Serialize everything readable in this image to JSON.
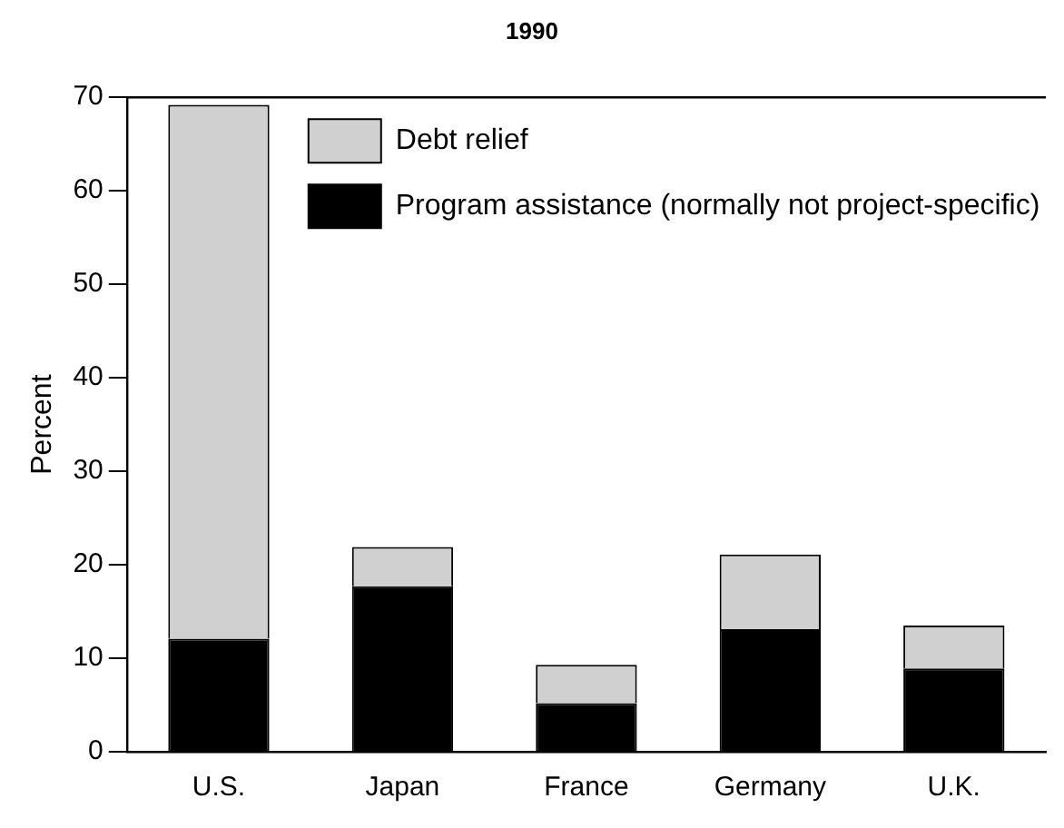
{
  "chart_data": {
    "type": "bar",
    "title": "1990",
    "ylabel": "Percent",
    "categories": [
      "U.S.",
      "Japan",
      "France",
      "Germany",
      "U.K."
    ],
    "stacked": true,
    "ylim": [
      0,
      70
    ],
    "yticks": [
      0,
      10,
      20,
      30,
      40,
      50,
      60,
      70
    ],
    "grid": false,
    "legend": "top right",
    "series": [
      {
        "name": "Program assistance (normally not project-specific)",
        "color": "#000000",
        "values": [
          12.1,
          17.7,
          5.2,
          13.1,
          8.9
        ]
      },
      {
        "name": "Debt relief",
        "color": "#d0d0d0",
        "values": [
          57.1,
          4.2,
          4.1,
          8.0,
          4.6
        ]
      }
    ]
  }
}
